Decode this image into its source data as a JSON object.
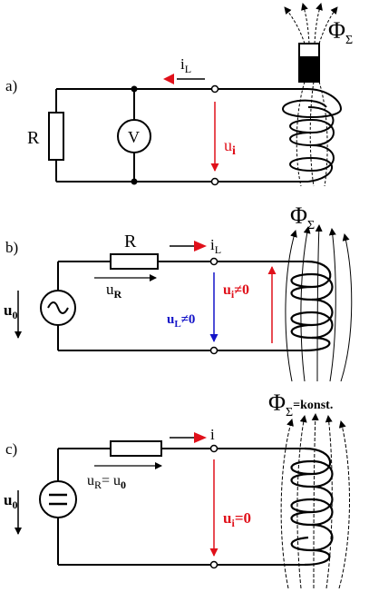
{
  "panel_a": {
    "tag": "a)",
    "resistor": "R",
    "voltmeter": "V",
    "current": {
      "main": "i",
      "sub": "L"
    },
    "induced": {
      "main": "u",
      "sub": "i"
    },
    "flux": {
      "main": "Φ",
      "sub": "Σ"
    }
  },
  "panel_b": {
    "tag": "b)",
    "resistor": "R",
    "source_voltage": {
      "main": "u",
      "sub": "0"
    },
    "resistor_voltage": {
      "main": "u",
      "sub": "R"
    },
    "current": {
      "main": "i",
      "sub": "L"
    },
    "coil_voltage": {
      "main": "u",
      "sub": "L",
      "suffix": "≠0"
    },
    "induced": {
      "main": "u",
      "sub": "i",
      "suffix": "≠0"
    },
    "flux": {
      "main": "Φ",
      "sub": "Σ"
    }
  },
  "panel_c": {
    "tag": "c)",
    "source_voltage": {
      "main": "u",
      "sub": "0"
    },
    "resistor_voltage": {
      "main": "u",
      "sub": "R",
      "eq": "= u",
      "eq_sub": "0"
    },
    "current": "i",
    "induced": {
      "main": "u",
      "sub": "i",
      "suffix": "=0"
    },
    "flux": {
      "main": "Φ",
      "sub": "Σ",
      "suffix": "=konst."
    }
  },
  "colors": {
    "red": "#e0101a",
    "blue": "#1414c8",
    "ink": "#000000"
  }
}
